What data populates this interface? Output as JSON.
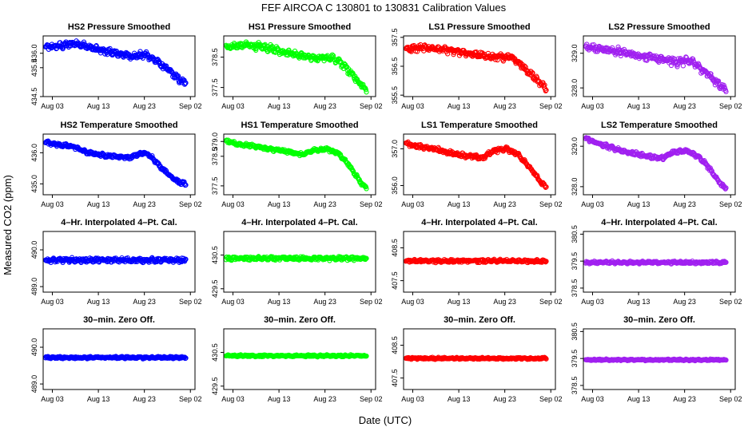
{
  "figure": {
    "title": "FEF   AIRCOA C   130801 to 130831   Calibration Values",
    "xlabel": "Date (UTC)",
    "ylabel": "Measured CO2 (ppm)"
  },
  "chart_data": [
    {
      "id": "hs2-pressure",
      "type": "scatter",
      "title": "HS2 Pressure Smoothed",
      "color": "#0000ff",
      "ylim": [
        434.5,
        436.6
      ],
      "yticks": [
        434.5,
        435.5,
        436.0
      ],
      "trend": [
        [
          0,
          436.2
        ],
        [
          0.1,
          436.25
        ],
        [
          0.22,
          436.35
        ],
        [
          0.35,
          436.15
        ],
        [
          0.5,
          436.0
        ],
        [
          0.62,
          435.9
        ],
        [
          0.72,
          435.95
        ],
        [
          0.8,
          435.7
        ],
        [
          0.88,
          435.4
        ],
        [
          0.95,
          435.1
        ],
        [
          1,
          434.95
        ]
      ],
      "noise": 0.12
    },
    {
      "id": "hs1-pressure",
      "type": "scatter",
      "title": "HS1 Pressure Smoothed",
      "color": "#00ff00",
      "ylim": [
        377.2,
        379.2
      ],
      "yticks": [
        377.5,
        378.5
      ],
      "trend": [
        [
          0,
          378.85
        ],
        [
          0.15,
          378.9
        ],
        [
          0.3,
          378.8
        ],
        [
          0.5,
          378.6
        ],
        [
          0.65,
          378.45
        ],
        [
          0.75,
          378.5
        ],
        [
          0.82,
          378.3
        ],
        [
          0.9,
          377.95
        ],
        [
          0.96,
          377.6
        ],
        [
          1,
          377.4
        ]
      ],
      "noise": 0.12
    },
    {
      "id": "ls1-pressure",
      "type": "scatter",
      "title": "LS1 Pressure Smoothed",
      "color": "#ff0000",
      "ylim": [
        355.45,
        357.55
      ],
      "yticks": [
        355.5,
        356.5,
        357.5
      ],
      "trend": [
        [
          0,
          357.1
        ],
        [
          0.15,
          357.15
        ],
        [
          0.3,
          357.05
        ],
        [
          0.5,
          356.9
        ],
        [
          0.65,
          356.8
        ],
        [
          0.75,
          356.85
        ],
        [
          0.82,
          356.55
        ],
        [
          0.9,
          356.2
        ],
        [
          0.96,
          355.9
        ],
        [
          1,
          355.75
        ]
      ],
      "noise": 0.12
    },
    {
      "id": "ls2-pressure",
      "type": "scatter",
      "title": "LS2 Pressure Smoothed",
      "color": "#a020f0",
      "ylim": [
        327.75,
        329.5
      ],
      "yticks": [
        328.0,
        329.0
      ],
      "trend": [
        [
          0,
          329.2
        ],
        [
          0.15,
          329.1
        ],
        [
          0.3,
          329.0
        ],
        [
          0.5,
          328.85
        ],
        [
          0.65,
          328.75
        ],
        [
          0.75,
          328.8
        ],
        [
          0.82,
          328.55
        ],
        [
          0.9,
          328.3
        ],
        [
          0.96,
          328.05
        ],
        [
          1,
          327.95
        ]
      ],
      "noise": 0.12
    },
    {
      "id": "hs2-temperature",
      "type": "scatter",
      "title": "HS2 Temperature Smoothed",
      "color": "#0000ff",
      "ylim": [
        434.65,
        436.6
      ],
      "yticks": [
        435.0,
        436.0
      ],
      "trend": [
        [
          0,
          436.35
        ],
        [
          0.1,
          436.25
        ],
        [
          0.2,
          436.2
        ],
        [
          0.3,
          436.0
        ],
        [
          0.45,
          435.9
        ],
        [
          0.6,
          435.85
        ],
        [
          0.7,
          436.0
        ],
        [
          0.75,
          435.9
        ],
        [
          0.82,
          435.55
        ],
        [
          0.88,
          435.3
        ],
        [
          0.95,
          435.05
        ],
        [
          1,
          435.0
        ]
      ],
      "noise": 0.06
    },
    {
      "id": "hs1-temperature",
      "type": "scatter",
      "title": "HS1 Temperature Smoothed",
      "color": "#00ff00",
      "ylim": [
        377.2,
        379.25
      ],
      "yticks": [
        377.5,
        378.5,
        379.0
      ],
      "trend": [
        [
          0,
          379.0
        ],
        [
          0.1,
          378.9
        ],
        [
          0.2,
          378.85
        ],
        [
          0.3,
          378.75
        ],
        [
          0.45,
          378.65
        ],
        [
          0.55,
          378.55
        ],
        [
          0.62,
          378.7
        ],
        [
          0.72,
          378.75
        ],
        [
          0.8,
          378.6
        ],
        [
          0.86,
          378.3
        ],
        [
          0.92,
          377.9
        ],
        [
          0.97,
          377.55
        ],
        [
          1,
          377.45
        ]
      ],
      "noise": 0.06
    },
    {
      "id": "ls1-temperature",
      "type": "scatter",
      "title": "LS1 Temperature Smoothed",
      "color": "#ff0000",
      "ylim": [
        355.75,
        357.4
      ],
      "yticks": [
        356.0,
        357.0
      ],
      "trend": [
        [
          0,
          357.15
        ],
        [
          0.1,
          357.05
        ],
        [
          0.2,
          357.0
        ],
        [
          0.3,
          356.9
        ],
        [
          0.45,
          356.8
        ],
        [
          0.55,
          356.75
        ],
        [
          0.62,
          356.95
        ],
        [
          0.72,
          357.0
        ],
        [
          0.8,
          356.85
        ],
        [
          0.86,
          356.6
        ],
        [
          0.92,
          356.3
        ],
        [
          0.97,
          356.05
        ],
        [
          1,
          355.95
        ]
      ],
      "noise": 0.06
    },
    {
      "id": "ls2-temperature",
      "type": "scatter",
      "title": "LS2 Temperature Smoothed",
      "color": "#a020f0",
      "ylim": [
        327.8,
        329.3
      ],
      "yticks": [
        328.0,
        329.0
      ],
      "trend": [
        [
          0,
          329.2
        ],
        [
          0.1,
          329.05
        ],
        [
          0.2,
          328.95
        ],
        [
          0.3,
          328.85
        ],
        [
          0.45,
          328.75
        ],
        [
          0.55,
          328.7
        ],
        [
          0.62,
          328.85
        ],
        [
          0.72,
          328.9
        ],
        [
          0.8,
          328.75
        ],
        [
          0.86,
          328.55
        ],
        [
          0.92,
          328.25
        ],
        [
          0.97,
          328.05
        ],
        [
          1,
          327.95
        ]
      ],
      "noise": 0.05
    },
    {
      "id": "hs2-interp",
      "type": "scatter",
      "title": "4–Hr. Interpolated 4–Pt. Cal.",
      "color": "#0000ff",
      "ylim": [
        488.85,
        490.5
      ],
      "yticks": [
        489.0,
        490.0
      ],
      "trend": [
        [
          0,
          489.72
        ],
        [
          1,
          489.72
        ]
      ],
      "noise": 0.06
    },
    {
      "id": "hs1-interp",
      "type": "scatter",
      "title": "4–Hr. Interpolated 4–Pt. Cal.",
      "color": "#00ff00",
      "ylim": [
        429.4,
        431.2
      ],
      "yticks": [
        429.5,
        430.5
      ],
      "trend": [
        [
          0,
          430.4
        ],
        [
          1,
          430.4
        ]
      ],
      "noise": 0.06
    },
    {
      "id": "ls1-interp",
      "type": "scatter",
      "title": "4–Hr. Interpolated 4–Pt. Cal.",
      "color": "#ff0000",
      "ylim": [
        407.15,
        409.0
      ],
      "yticks": [
        407.5,
        408.5
      ],
      "trend": [
        [
          0,
          408.1
        ],
        [
          1,
          408.1
        ]
      ],
      "noise": 0.05
    },
    {
      "id": "ls2-interp",
      "type": "scatter",
      "title": "4–Hr. Interpolated 4–Pt. Cal.",
      "color": "#a020f0",
      "ylim": [
        378.35,
        380.6
      ],
      "yticks": [
        378.5,
        379.5,
        380.5
      ],
      "trend": [
        [
          0,
          379.45
        ],
        [
          1,
          379.45
        ]
      ],
      "noise": 0.05
    },
    {
      "id": "hs2-zero",
      "type": "scatter",
      "title": "30–min. Zero Off.",
      "color": "#0000ff",
      "ylim": [
        488.85,
        490.5
      ],
      "yticks": [
        489.0,
        490.0
      ],
      "trend": [
        [
          0,
          489.72
        ],
        [
          1,
          489.72
        ]
      ],
      "noise": 0.03
    },
    {
      "id": "hs1-zero",
      "type": "scatter",
      "title": "30–min. Zero Off.",
      "color": "#00ff00",
      "ylim": [
        429.4,
        431.2
      ],
      "yticks": [
        429.5,
        430.5
      ],
      "trend": [
        [
          0,
          430.4
        ],
        [
          1,
          430.4
        ]
      ],
      "noise": 0.03
    },
    {
      "id": "ls1-zero",
      "type": "scatter",
      "title": "30–min. Zero Off.",
      "color": "#ff0000",
      "ylim": [
        407.15,
        409.0
      ],
      "yticks": [
        407.5,
        408.5
      ],
      "trend": [
        [
          0,
          408.1
        ],
        [
          1,
          408.1
        ]
      ],
      "noise": 0.03
    },
    {
      "id": "ls2-zero",
      "type": "scatter",
      "title": "30–min. Zero Off.",
      "color": "#a020f0",
      "ylim": [
        378.35,
        380.6
      ],
      "yticks": [
        378.5,
        379.5,
        380.5
      ],
      "trend": [
        [
          0,
          379.45
        ],
        [
          1,
          379.45
        ]
      ],
      "noise": 0.03
    }
  ],
  "x_axis": {
    "xlim_days": [
      0,
      33
    ],
    "ticks": [
      {
        "label": "Aug 03",
        "day": 2
      },
      {
        "label": "Aug 13",
        "day": 12
      },
      {
        "label": "Aug 23",
        "day": 22
      },
      {
        "label": "Sep 02",
        "day": 32
      }
    ],
    "data_range_days": [
      0.5,
      31
    ]
  }
}
